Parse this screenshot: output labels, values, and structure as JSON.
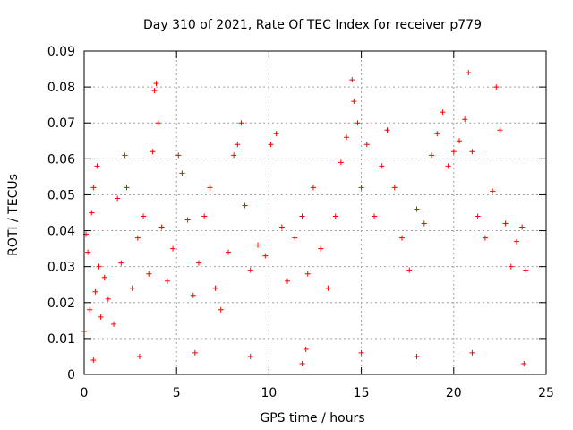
{
  "chart_data": {
    "type": "scatter",
    "title": "Day 310 of 2021, Rate Of TEC Index for receiver p779",
    "xlabel": "GPS time / hours",
    "ylabel": "ROTI / TECUs",
    "xlim": [
      0,
      25
    ],
    "ylim": [
      0,
      0.09
    ],
    "xticks": [
      0,
      5,
      10,
      15,
      20,
      25
    ],
    "xtick_labels": [
      "0",
      "5",
      "10",
      "15",
      "20",
      "25"
    ],
    "yticks": [
      0,
      0.01,
      0.02,
      0.03,
      0.04,
      0.05,
      0.06,
      0.07,
      0.08,
      0.09
    ],
    "ytick_labels": [
      "0",
      "0.01",
      "0.02",
      "0.03",
      "0.04",
      "0.05",
      "0.06",
      "0.07",
      "0.08",
      "0.09"
    ],
    "grid": true,
    "marker": "+",
    "color": "#ff0000",
    "series": [
      {
        "points": [
          [
            0.0,
            0.012
          ],
          [
            0.1,
            0.039
          ],
          [
            0.2,
            0.034
          ],
          [
            0.3,
            0.018
          ],
          [
            0.4,
            0.045
          ],
          [
            0.5,
            0.052
          ],
          [
            0.6,
            0.023
          ],
          [
            0.7,
            0.058
          ],
          [
            0.8,
            0.03
          ],
          [
            0.9,
            0.016
          ],
          [
            1.1,
            0.027
          ],
          [
            1.3,
            0.021
          ],
          [
            1.6,
            0.014
          ],
          [
            1.8,
            0.049
          ],
          [
            2.0,
            0.031
          ],
          [
            2.2,
            0.061
          ],
          [
            2.3,
            0.052
          ],
          [
            2.6,
            0.024
          ],
          [
            2.9,
            0.038
          ],
          [
            3.2,
            0.044
          ],
          [
            3.5,
            0.028
          ],
          [
            3.7,
            0.062
          ],
          [
            3.8,
            0.079
          ],
          [
            3.9,
            0.081
          ],
          [
            4.0,
            0.07
          ],
          [
            4.2,
            0.041
          ],
          [
            4.5,
            0.026
          ],
          [
            4.8,
            0.035
          ],
          [
            5.1,
            0.061
          ],
          [
            5.3,
            0.056
          ],
          [
            5.6,
            0.043
          ],
          [
            5.9,
            0.022
          ],
          [
            6.2,
            0.031
          ],
          [
            6.5,
            0.044
          ],
          [
            6.8,
            0.052
          ],
          [
            7.1,
            0.024
          ],
          [
            7.4,
            0.018
          ],
          [
            7.8,
            0.034
          ],
          [
            8.1,
            0.061
          ],
          [
            8.3,
            0.064
          ],
          [
            8.5,
            0.07
          ],
          [
            8.7,
            0.047
          ],
          [
            9.0,
            0.029
          ],
          [
            9.4,
            0.036
          ],
          [
            9.8,
            0.033
          ],
          [
            10.1,
            0.064
          ],
          [
            10.4,
            0.067
          ],
          [
            10.7,
            0.041
          ],
          [
            11.0,
            0.026
          ],
          [
            11.4,
            0.038
          ],
          [
            11.8,
            0.044
          ],
          [
            12.1,
            0.028
          ],
          [
            12.4,
            0.052
          ],
          [
            12.8,
            0.035
          ],
          [
            13.2,
            0.024
          ],
          [
            13.6,
            0.044
          ],
          [
            13.9,
            0.059
          ],
          [
            14.2,
            0.066
          ],
          [
            14.5,
            0.082
          ],
          [
            14.6,
            0.076
          ],
          [
            14.8,
            0.07
          ],
          [
            15.0,
            0.052
          ],
          [
            15.3,
            0.064
          ],
          [
            15.7,
            0.044
          ],
          [
            16.1,
            0.058
          ],
          [
            16.4,
            0.068
          ],
          [
            16.8,
            0.052
          ],
          [
            17.2,
            0.038
          ],
          [
            17.6,
            0.029
          ],
          [
            18.0,
            0.046
          ],
          [
            18.4,
            0.042
          ],
          [
            18.8,
            0.061
          ],
          [
            19.1,
            0.067
          ],
          [
            19.4,
            0.073
          ],
          [
            19.7,
            0.058
          ],
          [
            20.0,
            0.062
          ],
          [
            20.3,
            0.065
          ],
          [
            20.6,
            0.071
          ],
          [
            20.8,
            0.084
          ],
          [
            21.0,
            0.062
          ],
          [
            21.3,
            0.044
          ],
          [
            21.7,
            0.038
          ],
          [
            22.1,
            0.051
          ],
          [
            22.3,
            0.08
          ],
          [
            22.5,
            0.068
          ],
          [
            22.8,
            0.042
          ],
          [
            23.1,
            0.03
          ],
          [
            23.4,
            0.037
          ],
          [
            23.7,
            0.041
          ],
          [
            23.9,
            0.029
          ],
          [
            0.5,
            0.004
          ],
          [
            3.0,
            0.005
          ],
          [
            6.0,
            0.006
          ],
          [
            9.0,
            0.005
          ],
          [
            11.8,
            0.003
          ],
          [
            15.0,
            0.006
          ],
          [
            18.0,
            0.005
          ],
          [
            21.0,
            0.006
          ],
          [
            23.8,
            0.003
          ],
          [
            12.0,
            0.007
          ]
        ]
      }
    ]
  }
}
